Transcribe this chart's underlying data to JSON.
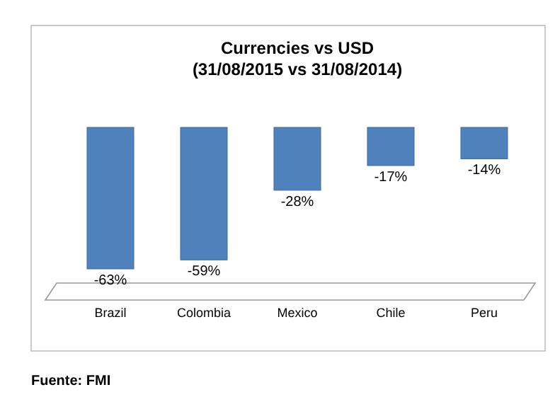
{
  "chart_data": {
    "type": "bar",
    "title": "Currencies vs USD",
    "subtitle": "(31/08/2015  vs 31/08/2014)",
    "categories": [
      "Brazil",
      "Colombia",
      "Mexico",
      "Chile",
      "Peru"
    ],
    "values": [
      -63,
      -59,
      -28,
      -17,
      -14
    ],
    "value_labels": [
      "-63%",
      "-59%",
      "-28%",
      "-17%",
      "-14%"
    ],
    "color": "#4f81bd",
    "grid": false,
    "annotations": [
      "Fuente: FMI"
    ]
  }
}
